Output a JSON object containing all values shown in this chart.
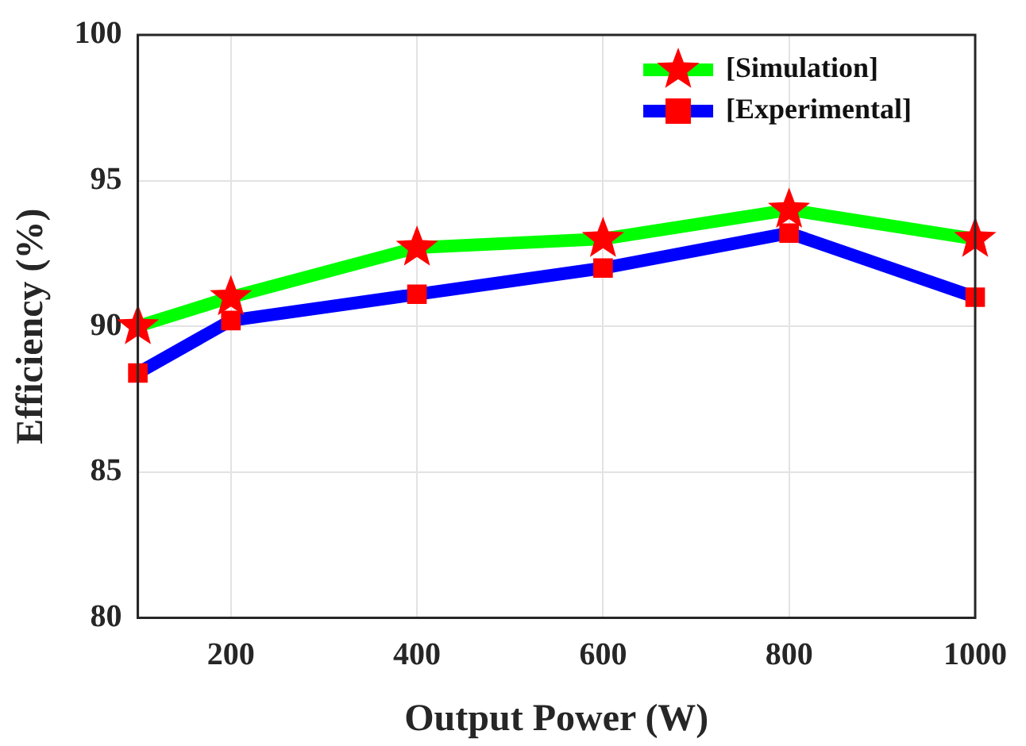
{
  "chart_data": {
    "type": "line",
    "xlabel": "Output Power (W)",
    "ylabel": "Efficiency (%)",
    "x": [
      100,
      200,
      400,
      600,
      800,
      1000
    ],
    "xlim": [
      100,
      1000
    ],
    "xticks": [
      200,
      400,
      600,
      800,
      1000
    ],
    "ylim": [
      80,
      100
    ],
    "yticks": [
      80,
      85,
      90,
      95,
      100
    ],
    "grid": true,
    "legend": "top right",
    "series": [
      {
        "name": "[Simulation]",
        "color": "#00ff00",
        "colors": [
          "#ff0000",
          "#ff0000",
          "#ff0000",
          "#ff0000",
          "#ff0000",
          "#ff0000"
        ],
        "marker": "star",
        "values": [
          90.0,
          91.0,
          92.7,
          93.0,
          94.0,
          93.0
        ]
      },
      {
        "name": "[Experimental]",
        "color": "#0000ff",
        "colors": [
          "#ff0000",
          "#ff0000",
          "#ff0000",
          "#ff0000",
          "#ff0000",
          "#ff0000"
        ],
        "marker": "square",
        "values": [
          88.4,
          90.2,
          91.1,
          92.0,
          93.2,
          91.0
        ]
      }
    ]
  }
}
